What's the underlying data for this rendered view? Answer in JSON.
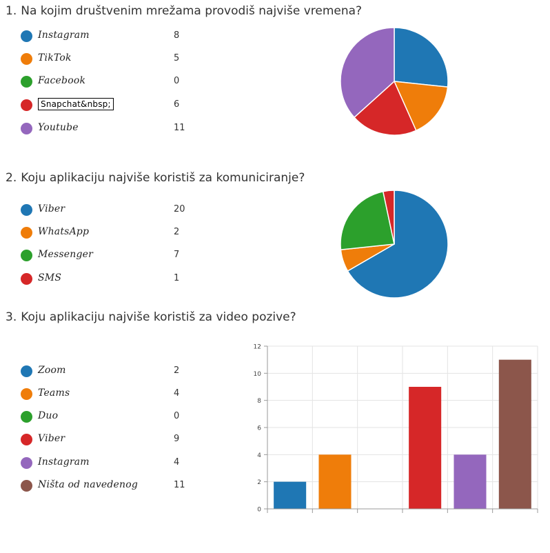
{
  "chart_data": [
    {
      "type": "pie",
      "number": "1.",
      "title": "Na kojim društvenim mrežama provodiš najviše vremena?",
      "categories": [
        "Instagram",
        "TikTok",
        "Facebook",
        "Snapchat&nbsp;",
        "Youtube"
      ],
      "values": [
        8,
        5,
        0,
        6,
        11
      ],
      "colors": [
        "#1f77b4",
        "#ef7d0a",
        "#2ca02c",
        "#d62728",
        "#9467bd"
      ],
      "legend_position": "left"
    },
    {
      "type": "pie",
      "number": "2.",
      "title": "Koju aplikaciju najviše koristiš za komuniciranje?",
      "categories": [
        "Viber",
        "WhatsApp",
        "Messenger",
        "SMS"
      ],
      "values": [
        20,
        2,
        7,
        1
      ],
      "colors": [
        "#1f77b4",
        "#ef7d0a",
        "#2ca02c",
        "#d62728"
      ],
      "legend_position": "left"
    },
    {
      "type": "bar",
      "number": "3.",
      "title": "Koju aplikaciju najviše koristiš za video pozive?",
      "categories": [
        "Zoom",
        "Teams",
        "Duo",
        "Viber",
        "Instagram",
        "Ništa od navedenog"
      ],
      "values": [
        2,
        4,
        0,
        9,
        4,
        11
      ],
      "colors": [
        "#1f77b4",
        "#ef7d0a",
        "#2ca02c",
        "#d62728",
        "#9467bd",
        "#8c564b"
      ],
      "ylim": [
        0,
        12
      ],
      "yticks": [
        "0",
        "2",
        "4",
        "6",
        "8",
        "10",
        "12"
      ],
      "grid": true,
      "legend_position": "left"
    }
  ]
}
